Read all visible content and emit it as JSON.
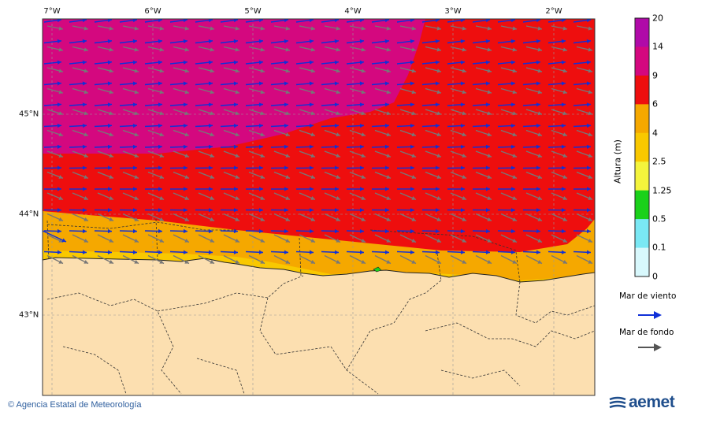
{
  "map": {
    "lon_labels": [
      "7°W",
      "6°W",
      "5°W",
      "4°W",
      "3°W",
      "2°W"
    ],
    "lat_labels": [
      "45°N",
      "44°N",
      "43°N"
    ],
    "colors": {
      "zone_9_14": "#d4087f",
      "zone_6_9": "#ee0e0e",
      "zone_4_6": "#f5a800",
      "zone_2_5_4": "#f9c800",
      "land": "#fcdfb0",
      "wind_arrow": "#1030d8",
      "swell_arrow": "#777777"
    }
  },
  "legend": {
    "title": "Altura (m)",
    "ticks": [
      "20",
      "14",
      "9",
      "6",
      "4",
      "2.5",
      "1.25",
      "0.5",
      "0.1",
      "0"
    ],
    "colors": [
      "#b00aa8",
      "#d4087f",
      "#ee0e0e",
      "#f5a800",
      "#f9c800",
      "#f4f43c",
      "#1ad11a",
      "#7ae8f4",
      "#d8f8fc"
    ],
    "wind_label": "Mar de viento",
    "swell_label": "Mar de fondo"
  },
  "footer": {
    "copyright": "© Agencia Estatal de Meteorología",
    "logo_text": "aemet"
  }
}
